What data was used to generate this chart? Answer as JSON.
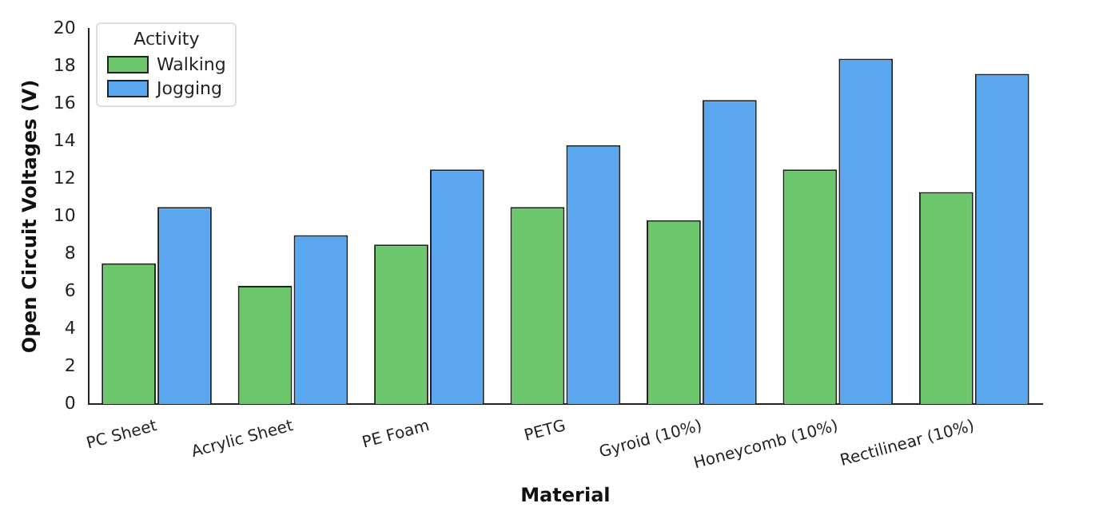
{
  "chart_data": {
    "type": "bar",
    "xlabel": "Material",
    "ylabel": "Open Circuit Voltages (V)",
    "legend_title": "Activity",
    "categories": [
      "PC Sheet",
      "Acrylic Sheet",
      "PE Foam",
      "PETG",
      "Gyroid (10%)",
      "Honeycomb (10%)",
      "Rectilinear (10%)"
    ],
    "series": [
      {
        "name": "Walking",
        "color": "#6cc66c",
        "values": [
          7.5,
          6.3,
          8.5,
          10.5,
          9.8,
          12.5,
          11.3
        ]
      },
      {
        "name": "Jogging",
        "color": "#5ba7ef",
        "values": [
          10.5,
          9.0,
          12.5,
          13.8,
          16.2,
          18.4,
          17.6
        ]
      }
    ],
    "ylim": [
      0,
      20
    ],
    "yticks": [
      0,
      2,
      4,
      6,
      8,
      10,
      12,
      14,
      16,
      18,
      20
    ],
    "grid": false,
    "legend": "top left"
  }
}
